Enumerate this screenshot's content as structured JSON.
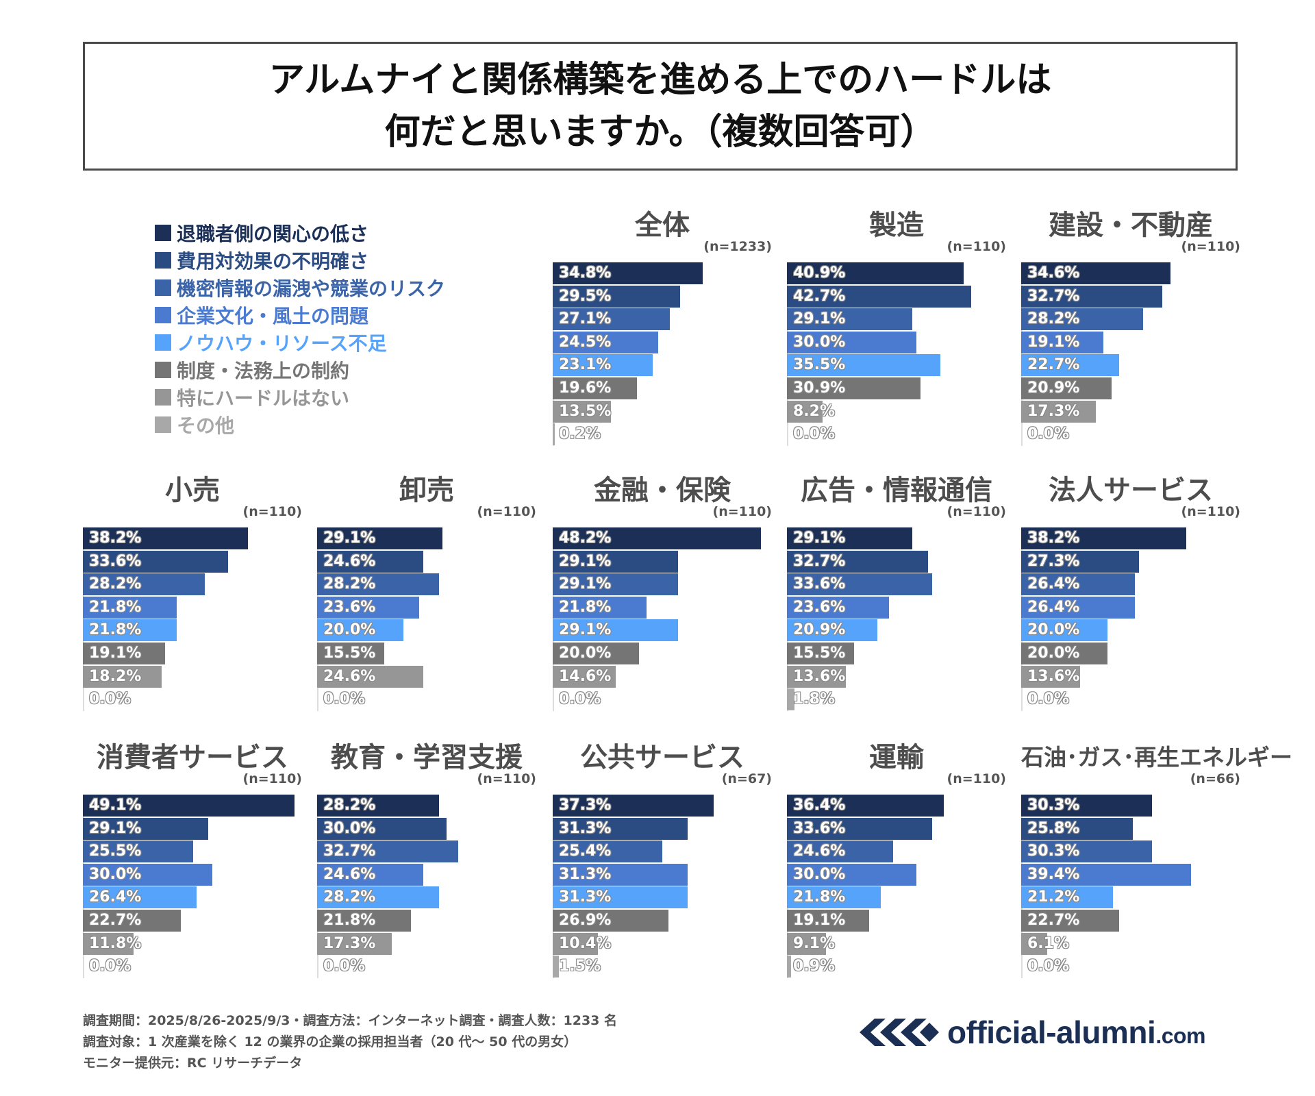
{
  "title": {
    "line1": "アルムナイと関係構築を進める上でのハードルは",
    "line2": "何だと思いますか。（複数回答可）"
  },
  "legend": [
    {
      "label": "退職者側の関心の低さ",
      "color": "#1c3057"
    },
    {
      "label": "費用対効果の不明確さ",
      "color": "#2b4c83"
    },
    {
      "label": "機密情報の漏洩や競業のリスク",
      "color": "#3a63a8"
    },
    {
      "label": "企業文化・風土の問題",
      "color": "#4a7bd0"
    },
    {
      "label": "ノウハウ・リソース不足",
      "color": "#55a3fb"
    },
    {
      "label": "制度・法務上の制約",
      "color": "#757575"
    },
    {
      "label": "特にハードルはない",
      "color": "#969696"
    },
    {
      "label": "その他",
      "color": "#a8a8a8"
    }
  ],
  "chart_data": [
    {
      "type": "bar",
      "orientation": "horizontal",
      "title": "全体",
      "n": "(n=1233)",
      "values": [
        34.8,
        29.5,
        27.1,
        24.5,
        23.1,
        19.6,
        13.5,
        0.2
      ],
      "labels": [
        "34.8%",
        "29.5%",
        "27.1%",
        "24.5%",
        "23.1%",
        "19.6%",
        "13.5%",
        "0.2%"
      ]
    },
    {
      "type": "bar",
      "orientation": "horizontal",
      "title": "製造",
      "n": "(n=110)",
      "values": [
        40.9,
        42.7,
        29.1,
        30.0,
        35.5,
        30.9,
        8.2,
        0.0
      ],
      "labels": [
        "40.9%",
        "42.7%",
        "29.1%",
        "30.0%",
        "35.5%",
        "30.9%",
        "8.2%",
        "0.0%"
      ]
    },
    {
      "type": "bar",
      "orientation": "horizontal",
      "title": "建設・不動産",
      "n": "(n=110)",
      "values": [
        34.6,
        32.7,
        28.2,
        19.1,
        22.7,
        20.9,
        17.3,
        0.0
      ],
      "labels": [
        "34.6%",
        "32.7%",
        "28.2%",
        "19.1%",
        "22.7%",
        "20.9%",
        "17.3%",
        "0.0%"
      ]
    },
    {
      "type": "bar",
      "orientation": "horizontal",
      "title": "小売",
      "n": "(n=110)",
      "values": [
        38.2,
        33.6,
        28.2,
        21.8,
        21.8,
        19.1,
        18.2,
        0.0
      ],
      "labels": [
        "38.2%",
        "33.6%",
        "28.2%",
        "21.8%",
        "21.8%",
        "19.1%",
        "18.2%",
        "0.0%"
      ]
    },
    {
      "type": "bar",
      "orientation": "horizontal",
      "title": "卸売",
      "n": "(n=110)",
      "values": [
        29.1,
        24.6,
        28.2,
        23.6,
        20.0,
        15.5,
        24.6,
        0.0
      ],
      "labels": [
        "29.1%",
        "24.6%",
        "28.2%",
        "23.6%",
        "20.0%",
        "15.5%",
        "24.6%",
        "0.0%"
      ]
    },
    {
      "type": "bar",
      "orientation": "horizontal",
      "title": "金融・保険",
      "n": "(n=110)",
      "values": [
        48.2,
        29.1,
        29.1,
        21.8,
        29.1,
        20.0,
        14.6,
        0.0
      ],
      "labels": [
        "48.2%",
        "29.1%",
        "29.1%",
        "21.8%",
        "29.1%",
        "20.0%",
        "14.6%",
        "0.0%"
      ]
    },
    {
      "type": "bar",
      "orientation": "horizontal",
      "title": "広告・情報通信",
      "n": "(n=110)",
      "values": [
        29.1,
        32.7,
        33.6,
        23.6,
        20.9,
        15.5,
        13.6,
        1.8
      ],
      "labels": [
        "29.1%",
        "32.7%",
        "33.6%",
        "23.6%",
        "20.9%",
        "15.5%",
        "13.6%",
        "1.8%"
      ]
    },
    {
      "type": "bar",
      "orientation": "horizontal",
      "title": "法人サービス",
      "n": "(n=110)",
      "values": [
        38.2,
        27.3,
        26.4,
        26.4,
        20.0,
        20.0,
        13.6,
        0.0
      ],
      "labels": [
        "38.2%",
        "27.3%",
        "26.4%",
        "26.4%",
        "20.0%",
        "20.0%",
        "13.6%",
        "0.0%"
      ]
    },
    {
      "type": "bar",
      "orientation": "horizontal",
      "title": "消費者サービス",
      "n": "(n=110)",
      "values": [
        49.1,
        29.1,
        25.5,
        30.0,
        26.4,
        22.7,
        11.8,
        0.0
      ],
      "labels": [
        "49.1%",
        "29.1%",
        "25.5%",
        "30.0%",
        "26.4%",
        "22.7%",
        "11.8%",
        "0.0%"
      ]
    },
    {
      "type": "bar",
      "orientation": "horizontal",
      "title": "教育・学習支援",
      "n": "(n=110)",
      "values": [
        28.2,
        30.0,
        32.7,
        24.6,
        28.2,
        21.8,
        17.3,
        0.0
      ],
      "labels": [
        "28.2%",
        "30.0%",
        "32.7%",
        "24.6%",
        "28.2%",
        "21.8%",
        "17.3%",
        "0.0%"
      ]
    },
    {
      "type": "bar",
      "orientation": "horizontal",
      "title": "公共サービス",
      "n": "(n=67)",
      "values": [
        37.3,
        31.3,
        25.4,
        31.3,
        31.3,
        26.9,
        10.4,
        1.5
      ],
      "labels": [
        "37.3%",
        "31.3%",
        "25.4%",
        "31.3%",
        "31.3%",
        "26.9%",
        "10.4%",
        "1.5%"
      ]
    },
    {
      "type": "bar",
      "orientation": "horizontal",
      "title": "運輸",
      "n": "(n=110)",
      "values": [
        36.4,
        33.6,
        24.6,
        30.0,
        21.8,
        19.1,
        9.1,
        0.9
      ],
      "labels": [
        "36.4%",
        "33.6%",
        "24.6%",
        "30.0%",
        "21.8%",
        "19.1%",
        "9.1%",
        "0.9%"
      ]
    },
    {
      "type": "bar",
      "orientation": "horizontal",
      "title": "石油･ガス･再生エネルギー",
      "n": "(n=66)",
      "values": [
        30.3,
        25.8,
        30.3,
        39.4,
        21.2,
        22.7,
        6.1,
        0.0
      ],
      "labels": [
        "30.3%",
        "25.8%",
        "30.3%",
        "39.4%",
        "21.2%",
        "22.7%",
        "6.1%",
        "0.0%"
      ]
    }
  ],
  "footer": {
    "line1": "調査期間：2025/8/26-2025/9/3・調査方法：インターネット調査・調査人数：1233 名",
    "line2": "調査対象：1 次産業を除く 12 の業界の企業の採用担当者（20 代〜 50 代の男女）",
    "line3": "モニター提供元：RC リサーチデータ"
  },
  "brand": {
    "name": "official-alumni",
    "tld": ".com",
    "logo_icon": "chevron-logo-icon"
  }
}
